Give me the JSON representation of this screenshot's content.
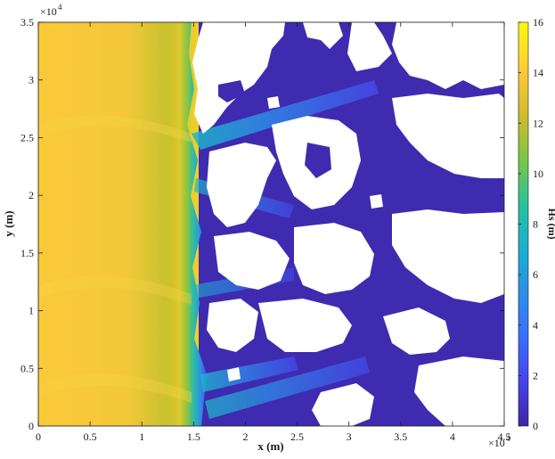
{
  "chart_data": {
    "type": "heatmap",
    "title": "",
    "xlabel": "x (m)",
    "ylabel": "y (m)",
    "colorbar_label": "Hs (m)",
    "xlim": [
      0,
      45000
    ],
    "ylim": [
      0,
      35000
    ],
    "clim": [
      0,
      16
    ],
    "x_ticks": [
      0,
      5000,
      10000,
      15000,
      20000,
      25000,
      30000,
      35000,
      40000,
      45000
    ],
    "y_ticks": [
      0,
      5000,
      10000,
      15000,
      20000,
      25000,
      30000,
      35000
    ],
    "x_tick_labels": [
      "0",
      "0.5",
      "1",
      "1.5",
      "2",
      "2.5",
      "3",
      "3.5",
      "4",
      "4.5"
    ],
    "y_tick_labels": [
      "0",
      "0.5",
      "1",
      "1.5",
      "2",
      "2.5",
      "3",
      "3.5"
    ],
    "colorbar_ticks": [
      0,
      2,
      4,
      6,
      8,
      10,
      12,
      14,
      16
    ],
    "colorbar_tick_labels": [
      "0",
      "2",
      "4",
      "6",
      "8",
      "10",
      "12",
      "14",
      "16"
    ],
    "x_exponent_base": "×10",
    "x_exponent_power": "4",
    "y_exponent_base": "×10",
    "y_exponent_power": "4",
    "colormap": "parula",
    "colormap_stops": [
      "#3e26a8",
      "#4743e9",
      "#3b6efe",
      "#2d8fe6",
      "#1bafcf",
      "#2dc09d",
      "#7bc647",
      "#d1bb2e",
      "#feca3c",
      "#f9fb0e"
    ],
    "land_color": "#ffffff",
    "grid": false,
    "description_fields": {
      "offshore_hs_range": [
        12,
        15
      ],
      "breaking_zone_x_range": [
        12000,
        16000
      ]
    }
  }
}
